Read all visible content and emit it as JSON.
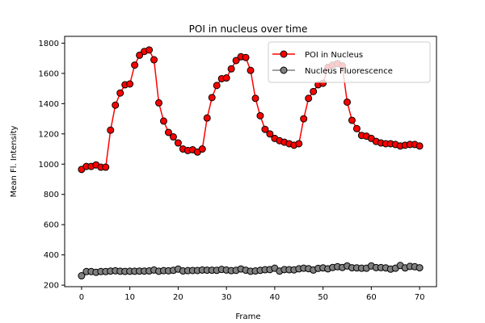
{
  "chart_data": {
    "type": "line",
    "title": "POI in nucleus over time",
    "xlabel": "Frame",
    "ylabel": "Mean Fl. Intensity",
    "xlim": [
      -3.5,
      73.5
    ],
    "ylim": [
      190,
      1845
    ],
    "xticks": [
      0,
      10,
      20,
      30,
      40,
      50,
      60,
      70
    ],
    "yticks": [
      200,
      400,
      600,
      800,
      1000,
      1200,
      1400,
      1600,
      1800
    ],
    "grid": false,
    "legend_position": "upper right",
    "x": [
      0,
      1,
      2,
      3,
      4,
      5,
      6,
      7,
      8,
      9,
      10,
      11,
      12,
      13,
      14,
      15,
      16,
      17,
      18,
      19,
      20,
      21,
      22,
      23,
      24,
      25,
      26,
      27,
      28,
      29,
      30,
      31,
      32,
      33,
      34,
      35,
      36,
      37,
      38,
      39,
      40,
      41,
      42,
      43,
      44,
      45,
      46,
      47,
      48,
      49,
      50,
      51,
      52,
      53,
      54,
      55,
      56,
      57,
      58,
      59,
      60,
      61,
      62,
      63,
      64,
      65,
      66,
      67,
      68,
      69,
      70
    ],
    "series": [
      {
        "name": "POI in Nucleus",
        "color": "#ff0000",
        "values": [
          965,
          985,
          985,
          995,
          980,
          980,
          1225,
          1390,
          1470,
          1525,
          1530,
          1655,
          1720,
          1745,
          1755,
          1690,
          1405,
          1285,
          1210,
          1180,
          1140,
          1100,
          1090,
          1095,
          1080,
          1100,
          1305,
          1440,
          1520,
          1565,
          1570,
          1630,
          1685,
          1710,
          1705,
          1620,
          1435,
          1320,
          1230,
          1200,
          1170,
          1155,
          1145,
          1135,
          1125,
          1135,
          1300,
          1435,
          1480,
          1525,
          1535,
          1640,
          1655,
          1665,
          1650,
          1410,
          1290,
          1235,
          1190,
          1185,
          1170,
          1150,
          1140,
          1135,
          1135,
          1130,
          1120,
          1125,
          1130,
          1130,
          1120
        ]
      },
      {
        "name": "Nucleus Fluorescence",
        "color": "#808080",
        "values": [
          262,
          290,
          290,
          285,
          290,
          290,
          293,
          295,
          292,
          291,
          292,
          292,
          293,
          293,
          294,
          300,
          292,
          296,
          295,
          298,
          306,
          294,
          296,
          297,
          297,
          300,
          299,
          299,
          298,
          304,
          300,
          296,
          298,
          307,
          299,
          292,
          294,
          298,
          302,
          303,
          312,
          293,
          303,
          302,
          301,
          308,
          312,
          309,
          300,
          311,
          314,
          308,
          317,
          322,
          317,
          327,
          315,
          314,
          312,
          312,
          327,
          316,
          316,
          314,
          306,
          312,
          330,
          314,
          324,
          322,
          315
        ]
      }
    ]
  }
}
